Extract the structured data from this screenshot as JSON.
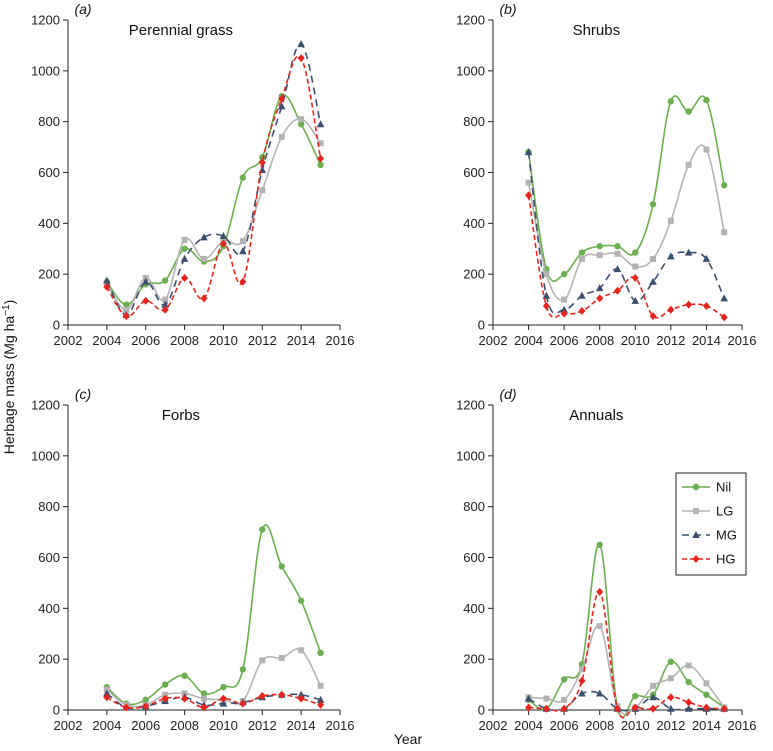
{
  "figure": {
    "xlabel": "Year",
    "ylabel_main": "Herbage mass (Mg ha",
    "ylabel_sup": "−1",
    "ylabel_close": ")"
  },
  "colors": {
    "Nil": "#6ab04c",
    "LG": "#b3b3b3",
    "MG": "#3d4f6e",
    "HG": "#e8231c"
  },
  "chart_data": [
    {
      "type": "line",
      "panel": "(a)",
      "title": "Perennial grass",
      "xlim": [
        2002,
        2016
      ],
      "ylim": [
        0,
        1200
      ],
      "xticks": [
        "2002",
        "2004",
        "2006",
        "2008",
        "2010",
        "2012",
        "2014",
        "2016"
      ],
      "yticks": [
        "0",
        "200",
        "400",
        "600",
        "800",
        "1000",
        "1200"
      ],
      "x": [
        2004,
        2005,
        2006,
        2007,
        2008,
        2009,
        2010,
        2011,
        2012,
        2013,
        2014,
        2015
      ],
      "series": [
        {
          "name": "Nil",
          "values": [
            170,
            80,
            160,
            175,
            300,
            250,
            310,
            580,
            660,
            900,
            790,
            630
          ]
        },
        {
          "name": "LG",
          "values": [
            165,
            60,
            185,
            100,
            335,
            260,
            330,
            330,
            530,
            740,
            810,
            715
          ]
        },
        {
          "name": "MG",
          "values": [
            175,
            40,
            170,
            80,
            260,
            345,
            350,
            290,
            610,
            860,
            1105,
            790
          ]
        },
        {
          "name": "HG",
          "values": [
            150,
            35,
            95,
            60,
            185,
            105,
            320,
            170,
            640,
            890,
            1050,
            655
          ]
        }
      ]
    },
    {
      "type": "line",
      "panel": "(b)",
      "title": "Shrubs",
      "xlim": [
        2002,
        2016
      ],
      "ylim": [
        0,
        1200
      ],
      "xticks": [
        "2002",
        "2004",
        "2006",
        "2008",
        "2010",
        "2012",
        "2014",
        "2016"
      ],
      "yticks": [
        "0",
        "200",
        "400",
        "600",
        "800",
        "1000",
        "1200"
      ],
      "x": [
        2004,
        2005,
        2006,
        2007,
        2008,
        2009,
        2010,
        2011,
        2012,
        2013,
        2014,
        2015
      ],
      "series": [
        {
          "name": "Nil",
          "values": [
            680,
            220,
            200,
            285,
            310,
            310,
            285,
            475,
            880,
            840,
            885,
            550
          ]
        },
        {
          "name": "LG",
          "values": [
            560,
            200,
            100,
            260,
            275,
            280,
            230,
            260,
            410,
            630,
            690,
            365
          ]
        },
        {
          "name": "MG",
          "values": [
            680,
            115,
            60,
            115,
            145,
            220,
            95,
            170,
            270,
            285,
            260,
            105
          ]
        },
        {
          "name": "HG",
          "values": [
            510,
            75,
            45,
            55,
            105,
            135,
            185,
            35,
            60,
            80,
            75,
            30
          ]
        }
      ]
    },
    {
      "type": "line",
      "panel": "(c)",
      "title": "Forbs",
      "xlim": [
        2002,
        2016
      ],
      "ylim": [
        0,
        1200
      ],
      "xticks": [
        "2002",
        "2004",
        "2006",
        "2008",
        "2010",
        "2012",
        "2014",
        "2016"
      ],
      "yticks": [
        "0",
        "200",
        "400",
        "600",
        "800",
        "1000",
        "1200"
      ],
      "x": [
        2004,
        2005,
        2006,
        2007,
        2008,
        2009,
        2010,
        2011,
        2012,
        2013,
        2014,
        2015
      ],
      "series": [
        {
          "name": "Nil",
          "values": [
            90,
            25,
            40,
            100,
            135,
            65,
            90,
            160,
            710,
            565,
            430,
            225
          ]
        },
        {
          "name": "LG",
          "values": [
            80,
            20,
            20,
            60,
            65,
            45,
            40,
            35,
            195,
            205,
            235,
            95
          ]
        },
        {
          "name": "MG",
          "values": [
            65,
            10,
            15,
            35,
            50,
            20,
            25,
            30,
            50,
            60,
            60,
            40
          ]
        },
        {
          "name": "HG",
          "values": [
            50,
            10,
            15,
            45,
            45,
            10,
            45,
            25,
            55,
            60,
            45,
            20
          ]
        }
      ]
    },
    {
      "type": "line",
      "panel": "(d)",
      "title": "Annuals",
      "xlim": [
        2002,
        2016
      ],
      "ylim": [
        0,
        1200
      ],
      "xticks": [
        "2002",
        "2004",
        "2006",
        "2008",
        "2010",
        "2012",
        "2014",
        "2016"
      ],
      "yticks": [
        "0",
        "200",
        "400",
        "600",
        "800",
        "1000",
        "1200"
      ],
      "x": [
        2004,
        2005,
        2006,
        2007,
        2008,
        2009,
        2010,
        2011,
        2012,
        2013,
        2014,
        2015
      ],
      "legend": {
        "placement": "right",
        "entries": [
          "Nil",
          "LG",
          "MG",
          "HG"
        ]
      },
      "series": [
        {
          "name": "Nil",
          "values": [
            40,
            5,
            120,
            180,
            650,
            10,
            55,
            60,
            190,
            110,
            60,
            10
          ]
        },
        {
          "name": "LG",
          "values": [
            50,
            45,
            40,
            160,
            330,
            15,
            10,
            95,
            125,
            175,
            105,
            10
          ]
        },
        {
          "name": "MG",
          "values": [
            45,
            5,
            5,
            65,
            65,
            5,
            5,
            50,
            5,
            5,
            5,
            5
          ]
        },
        {
          "name": "HG",
          "values": [
            10,
            5,
            5,
            115,
            465,
            5,
            10,
            5,
            50,
            30,
            10,
            5
          ]
        }
      ]
    }
  ]
}
